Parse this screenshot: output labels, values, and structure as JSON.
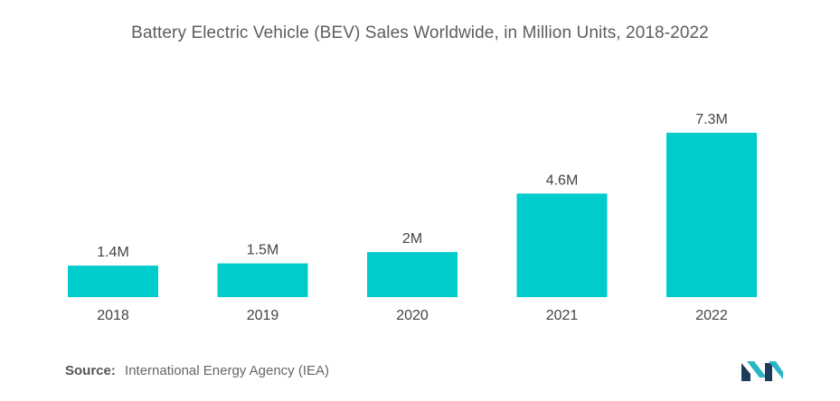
{
  "colors": {
    "bar": "#00cccc",
    "title": "#5d5d5d",
    "label": "#444444",
    "logo_dark": "#1f3b5c",
    "logo_teal": "#2ab6c4"
  },
  "chart_data": {
    "type": "bar",
    "title": "Battery Electric Vehicle (BEV) Sales Worldwide, in Million Units, 2018-2022",
    "xlabel": "",
    "ylabel": "",
    "categories": [
      "2018",
      "2019",
      "2020",
      "2021",
      "2022"
    ],
    "values": [
      1.4,
      1.5,
      2.0,
      4.6,
      7.3
    ],
    "data_labels": [
      "1.4M",
      "1.5M",
      "2M",
      "4.6M",
      "7.3M"
    ],
    "ylim": [
      0,
      7.3
    ],
    "grid": false,
    "legend": "none"
  },
  "source": {
    "label": "Source:",
    "text": "International Energy Agency (IEA)"
  },
  "logo": {
    "icon": "mordor-intelligence-logo-icon"
  }
}
